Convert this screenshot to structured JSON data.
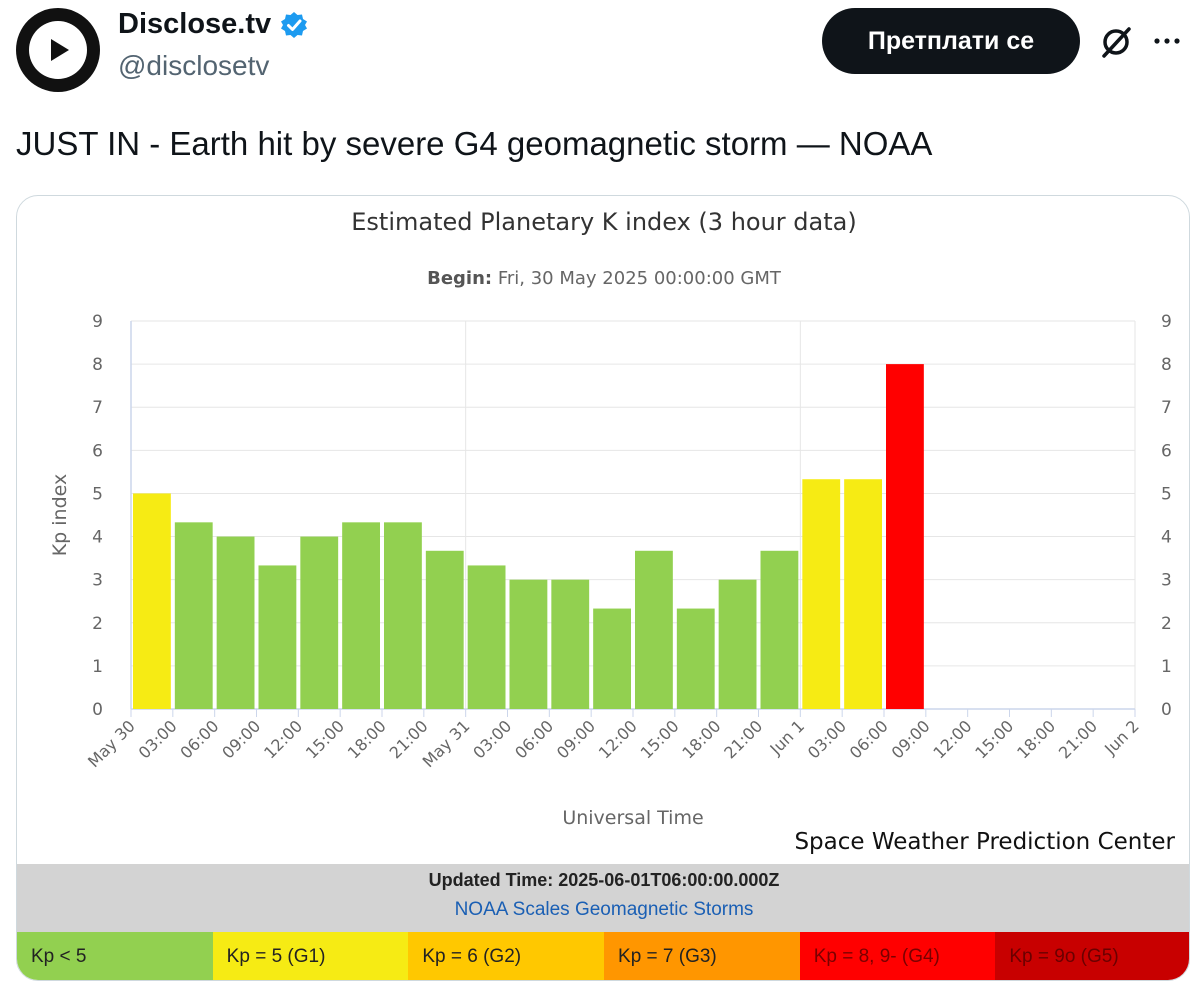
{
  "author": {
    "name": "Disclose.tv",
    "handle": "@disclosetv",
    "verified": true
  },
  "actions": {
    "subscribe_label": "Претплати се",
    "grok_icon": "grok-icon",
    "more_icon": "more-icon"
  },
  "tweet": {
    "text": "JUST IN - Earth hit by severe G4 geomagnetic storm — NOAA"
  },
  "card": {
    "subtitle_label": "Begin:",
    "subtitle_value": "Fri, 30 May 2025 00:00:00 GMT",
    "credit": "Space Weather Prediction Center",
    "updated": "Updated Time: 2025-06-01T06:00:00.000Z",
    "scales_link": "NOAA Scales Geomagnetic Storms",
    "legend": [
      {
        "label": "Kp < 5",
        "color": "#92d050",
        "text_color": "#222222"
      },
      {
        "label": "Kp = 5 (G1)",
        "color": "#f6eb14",
        "text_color": "#222222"
      },
      {
        "label": "Kp = 6 (G2)",
        "color": "#ffc800",
        "text_color": "#222222"
      },
      {
        "label": "Kp = 7 (G3)",
        "color": "#ff9600",
        "text_color": "#222222"
      },
      {
        "label": "Kp = 8, 9- (G4)",
        "color": "#ff0000",
        "text_color": "#7a0000"
      },
      {
        "label": "Kp = 9o (G5)",
        "color": "#c80000",
        "text_color": "#6a0000"
      }
    ]
  },
  "chart_data": {
    "type": "bar",
    "title": "Estimated Planetary K index (3 hour data)",
    "xlabel": "Universal Time",
    "ylabel": "Kp index",
    "ylim": [
      0,
      9
    ],
    "yticks": [
      0,
      1,
      2,
      3,
      4,
      5,
      6,
      7,
      8,
      9
    ],
    "xtick_labels": [
      "May 30",
      "03:00",
      "06:00",
      "09:00",
      "12:00",
      "15:00",
      "18:00",
      "21:00",
      "May 31",
      "03:00",
      "06:00",
      "09:00",
      "12:00",
      "15:00",
      "18:00",
      "21:00",
      "Jun 1",
      "03:00",
      "06:00",
      "09:00",
      "12:00",
      "15:00",
      "18:00",
      "21:00",
      "Jun 2"
    ],
    "values": [
      5.0,
      4.33,
      4.0,
      3.33,
      4.0,
      4.33,
      4.33,
      3.67,
      3.33,
      3.0,
      3.0,
      2.33,
      3.67,
      2.33,
      3.0,
      3.67,
      5.33,
      5.33,
      8.0
    ],
    "colors": [
      "#f6eb14",
      "#92d050",
      "#92d050",
      "#92d050",
      "#92d050",
      "#92d050",
      "#92d050",
      "#92d050",
      "#92d050",
      "#92d050",
      "#92d050",
      "#92d050",
      "#92d050",
      "#92d050",
      "#92d050",
      "#92d050",
      "#f6eb14",
      "#f6eb14",
      "#ff0000"
    ],
    "grid": true,
    "right_axis": true
  }
}
